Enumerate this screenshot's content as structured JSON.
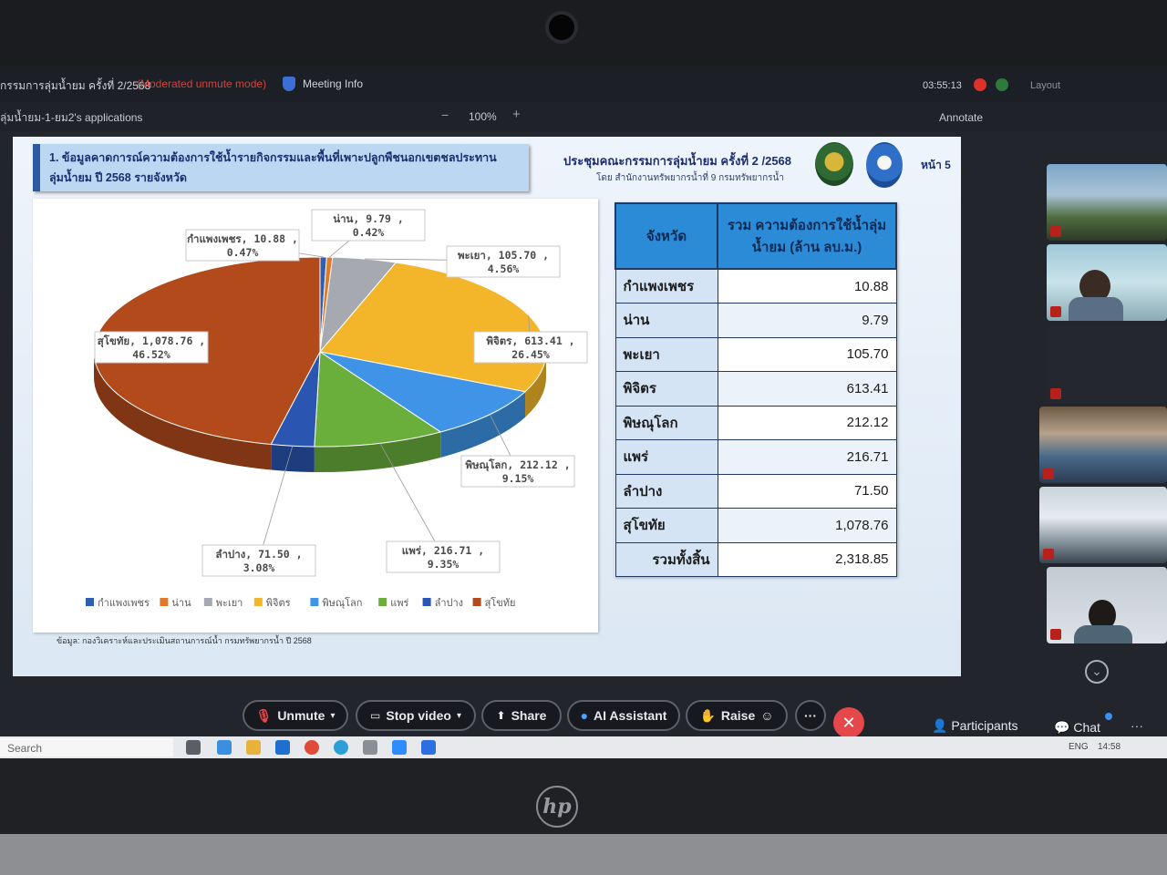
{
  "meeting": {
    "title": "กรรมการลุ่มน้ำยม ครั้งที่ 2/2568",
    "mode": "(Moderated unmute mode)",
    "info_label": "Meeting Info",
    "timer": "03:55:13",
    "layout_label": "Layout"
  },
  "share_bar": {
    "app_title": "ลุ่มน้ำยม-1-ยม2's applications",
    "zoom_minus": "−",
    "zoom_level": "100%",
    "zoom_plus": "+",
    "annotate_label": "Annotate"
  },
  "slide": {
    "title_line1": "1. ข้อมูลคาดการณ์ความต้องการใช้น้ำรายกิจกรรมและพื้นที่เพาะปลูกพืชนอกเขตชลประทาน",
    "title_line2": "ลุ่มน้ำยม ปี 2568 รายจังหวัด",
    "meeting_name": "ประชุมคณะกรรมการลุ่มน้ำยม ครั้งที่ 2 /2568",
    "meeting_org": "โดย สำนักงานทรัพยากรน้ำที่ 9 กรมทรัพยากรน้ำ",
    "page_number": "หน้า 5",
    "source_note": "ข้อมูล: กองวิเคราะห์และประเมินสถานการณ์น้ำ กรมทรัพยากรน้ำ ปี 2568"
  },
  "chart_data": {
    "type": "pie",
    "title": "",
    "legend_position": "bottom",
    "slices": [
      {
        "name": "กำแพงเพชร",
        "value": 10.88,
        "percent": 0.47,
        "label": "กำแพงเพชร, 10.88, 0.47%",
        "color": "#2f5fb0"
      },
      {
        "name": "น่าน",
        "value": 9.79,
        "percent": 0.42,
        "label": "น่าน, 9.79, 0.42%",
        "color": "#e07a2a"
      },
      {
        "name": "พะเยา",
        "value": 105.7,
        "percent": 4.56,
        "label": "พะเยา, 105.70, 4.56%",
        "color": "#a6a9b0"
      },
      {
        "name": "พิจิตร",
        "value": 613.41,
        "percent": 26.45,
        "label": "พิจิตร, 613.41, 26.45%",
        "color": "#f3b62a"
      },
      {
        "name": "พิษณุโลก",
        "value": 212.12,
        "percent": 9.15,
        "label": "พิษณุโลก, 212.12, 9.15%",
        "color": "#3f94e8"
      },
      {
        "name": "แพร่",
        "value": 216.71,
        "percent": 9.35,
        "label": "แพร่, 216.71, 9.35%",
        "color": "#6aae3c"
      },
      {
        "name": "ลำปาง",
        "value": 71.5,
        "percent": 3.08,
        "label": "ลำปาง, 71.50, 3.08%",
        "color": "#2a55b0"
      },
      {
        "name": "สุโขทัย",
        "value": 1078.76,
        "percent": 46.52,
        "label": "สุโขทัย, 1,078.76, 46.52%",
        "color": "#b24a1c"
      }
    ]
  },
  "table": {
    "header_province": "จังหวัด",
    "header_total_line1": "รวม ความต้องการใช้น้ำลุ่ม",
    "header_total_line2": "น้ำยม (ล้าน ลบ.ม.)",
    "rows": [
      {
        "province": "กำแพงเพชร",
        "value": "10.88"
      },
      {
        "province": "น่าน",
        "value": "9.79"
      },
      {
        "province": "พะเยา",
        "value": "105.70"
      },
      {
        "province": "พิจิตร",
        "value": "613.41"
      },
      {
        "province": "พิษณุโลก",
        "value": "212.12"
      },
      {
        "province": "แพร่",
        "value": "216.71"
      },
      {
        "province": "ลำปาง",
        "value": "71.50"
      },
      {
        "province": "สุโขทัย",
        "value": "1,078.76"
      }
    ],
    "total_label": "รวมทั้งสิ้น",
    "total_value": "2,318.85"
  },
  "toolbar": {
    "unmute": "Unmute",
    "stop_video": "Stop video",
    "share": "Share",
    "ai_assistant": "AI Assistant",
    "raise": "Raise",
    "more": "···",
    "leave": "✕",
    "participants": "Participants",
    "chat": "Chat",
    "more_right": "···"
  },
  "taskbar": {
    "search_placeholder": "Search",
    "language": "ENG",
    "time": "14:58"
  }
}
